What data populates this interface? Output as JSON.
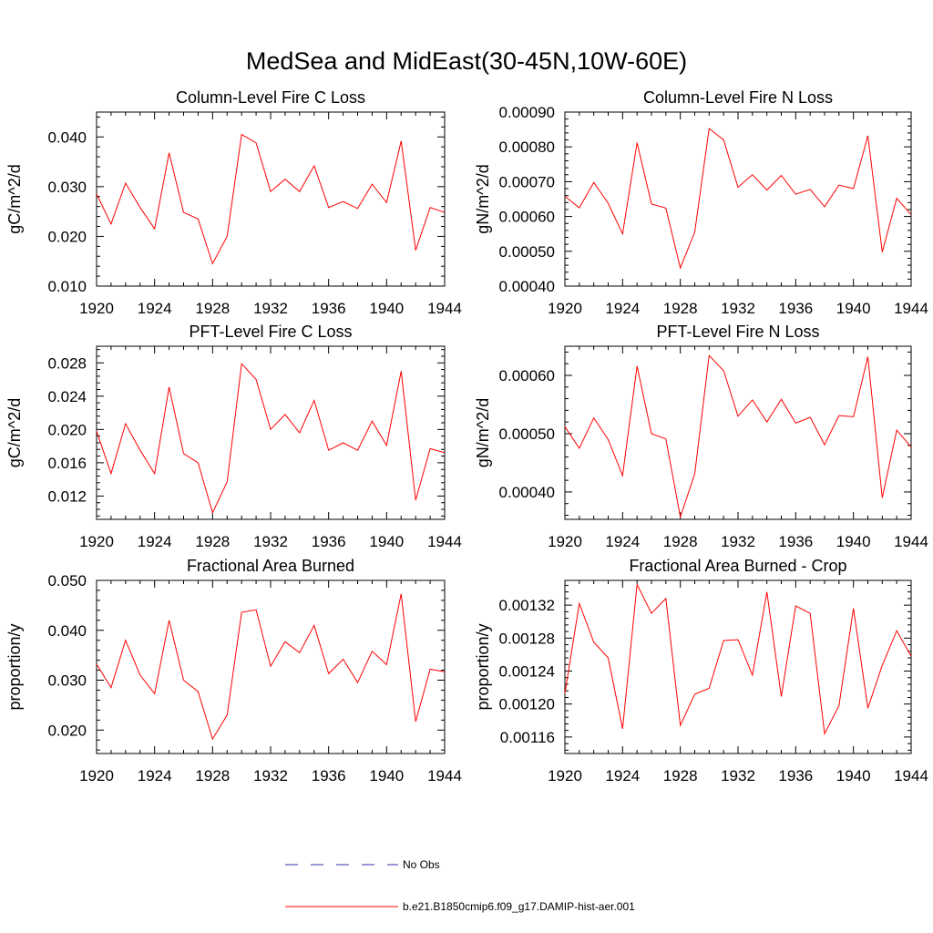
{
  "figure_title": "MedSea and MidEast(30-45N,10W-60E)",
  "legend": {
    "entries": [
      {
        "label": "No Obs",
        "color": "#3333aa",
        "dash": true
      },
      {
        "label": "b.e21.B1850cmip6.f09_g17.DAMIP-hist-aer.001",
        "color": "#ff0000",
        "dash": false
      }
    ]
  },
  "chart_data": [
    {
      "type": "line",
      "title": "Column-Level Fire C Loss",
      "ylabel": "gC/m^2/d",
      "xlim": [
        1920,
        1944
      ],
      "ylim": [
        0.01,
        0.045
      ],
      "yticks": [
        0.01,
        0.02,
        0.03,
        0.04
      ],
      "ytick_labels": [
        "0.010",
        "0.020",
        "0.030",
        "0.040"
      ],
      "xticks": [
        1920,
        1924,
        1928,
        1932,
        1936,
        1940,
        1944
      ],
      "xtick_labels": [
        "1920",
        "1924",
        "1928",
        "1932",
        "1936",
        "1940",
        "1944"
      ],
      "x": [
        1920,
        1921,
        1922,
        1923,
        1924,
        1925,
        1926,
        1927,
        1928,
        1929,
        1930,
        1931,
        1932,
        1933,
        1934,
        1935,
        1936,
        1937,
        1938,
        1939,
        1940,
        1941,
        1942,
        1943,
        1944
      ],
      "series": [
        {
          "color": "#ff0000",
          "values": [
            0.0285,
            0.0225,
            0.0307,
            0.0258,
            0.0215,
            0.0368,
            0.0248,
            0.0235,
            0.0145,
            0.02,
            0.0405,
            0.0388,
            0.029,
            0.0315,
            0.029,
            0.0342,
            0.0258,
            0.027,
            0.0256,
            0.0305,
            0.0268,
            0.0392,
            0.0172,
            0.0258,
            0.0248
          ]
        }
      ]
    },
    {
      "type": "line",
      "title": "Column-Level Fire N Loss",
      "ylabel": "gN/m^2/d",
      "xlim": [
        1920,
        1944
      ],
      "ylim": [
        0.0004,
        0.0009
      ],
      "yticks": [
        0.0004,
        0.0005,
        0.0006,
        0.0007,
        0.0008,
        0.0009
      ],
      "ytick_labels": [
        "0.00040",
        "0.00050",
        "0.00060",
        "0.00070",
        "0.00080",
        "0.00090"
      ],
      "xticks": [
        1920,
        1924,
        1928,
        1932,
        1936,
        1940,
        1944
      ],
      "xtick_labels": [
        "1920",
        "1924",
        "1928",
        "1932",
        "1936",
        "1940",
        "1944"
      ],
      "x": [
        1920,
        1921,
        1922,
        1923,
        1924,
        1925,
        1926,
        1927,
        1928,
        1929,
        1930,
        1931,
        1932,
        1933,
        1934,
        1935,
        1936,
        1937,
        1938,
        1939,
        1940,
        1941,
        1942,
        1943,
        1944
      ],
      "series": [
        {
          "color": "#ff0000",
          "values": [
            0.000658,
            0.000625,
            0.000698,
            0.000638,
            0.00055,
            0.000812,
            0.000636,
            0.000624,
            0.000452,
            0.000555,
            0.000853,
            0.00082,
            0.000684,
            0.00072,
            0.000676,
            0.000718,
            0.000664,
            0.000678,
            0.000628,
            0.00069,
            0.00068,
            0.000832,
            0.000498,
            0.000652,
            0.000605
          ]
        }
      ]
    },
    {
      "type": "line",
      "title": "PFT-Level Fire C Loss",
      "ylabel": "gC/m^2/d",
      "xlim": [
        1920,
        1944
      ],
      "ylim": [
        0.0092,
        0.03
      ],
      "yticks": [
        0.012,
        0.016,
        0.02,
        0.024,
        0.028
      ],
      "ytick_labels": [
        "0.012",
        "0.016",
        "0.020",
        "0.024",
        "0.028"
      ],
      "xticks": [
        1920,
        1924,
        1928,
        1932,
        1936,
        1940,
        1944
      ],
      "xtick_labels": [
        "1920",
        "1924",
        "1928",
        "1932",
        "1936",
        "1940",
        "1944"
      ],
      "x": [
        1920,
        1921,
        1922,
        1923,
        1924,
        1925,
        1926,
        1927,
        1928,
        1929,
        1930,
        1931,
        1932,
        1933,
        1934,
        1935,
        1936,
        1937,
        1938,
        1939,
        1940,
        1941,
        1942,
        1943,
        1944
      ],
      "series": [
        {
          "color": "#ff0000",
          "values": [
            0.0198,
            0.0147,
            0.0207,
            0.0175,
            0.0147,
            0.0251,
            0.0171,
            0.016,
            0.01,
            0.0137,
            0.0279,
            0.026,
            0.02,
            0.0218,
            0.0196,
            0.0235,
            0.0175,
            0.0184,
            0.0175,
            0.021,
            0.0181,
            0.027,
            0.0115,
            0.0177,
            0.0172
          ]
        }
      ]
    },
    {
      "type": "line",
      "title": "PFT-Level Fire N Loss",
      "ylabel": "gN/m^2/d",
      "xlim": [
        1920,
        1944
      ],
      "ylim": [
        0.000353,
        0.00065
      ],
      "yticks": [
        0.0004,
        0.0005,
        0.0006
      ],
      "ytick_labels": [
        "0.00040",
        "0.00050",
        "0.00060"
      ],
      "xticks": [
        1920,
        1924,
        1928,
        1932,
        1936,
        1940,
        1944
      ],
      "xtick_labels": [
        "1920",
        "1924",
        "1928",
        "1932",
        "1936",
        "1940",
        "1944"
      ],
      "x": [
        1920,
        1921,
        1922,
        1923,
        1924,
        1925,
        1926,
        1927,
        1928,
        1929,
        1930,
        1931,
        1932,
        1933,
        1934,
        1935,
        1936,
        1937,
        1938,
        1939,
        1940,
        1941,
        1942,
        1943,
        1944
      ],
      "series": [
        {
          "color": "#ff0000",
          "values": [
            0.000512,
            0.000475,
            0.000527,
            0.00049,
            0.000428,
            0.000616,
            0.0005,
            0.000491,
            0.000357,
            0.000431,
            0.000634,
            0.000608,
            0.00053,
            0.000558,
            0.00052,
            0.000559,
            0.000518,
            0.000528,
            0.000481,
            0.000531,
            0.000529,
            0.000632,
            0.00039,
            0.000506,
            0.000477
          ]
        }
      ]
    },
    {
      "type": "line",
      "title": "Fractional Area Burned",
      "ylabel": "proportion/y",
      "xlim": [
        1920,
        1944
      ],
      "ylim": [
        0.0153,
        0.05
      ],
      "yticks": [
        0.02,
        0.03,
        0.04,
        0.05
      ],
      "ytick_labels": [
        "0.020",
        "0.030",
        "0.040",
        "0.050"
      ],
      "xticks": [
        1920,
        1924,
        1928,
        1932,
        1936,
        1940,
        1944
      ],
      "xtick_labels": [
        "1920",
        "1924",
        "1928",
        "1932",
        "1936",
        "1940",
        "1944"
      ],
      "x": [
        1920,
        1921,
        1922,
        1923,
        1924,
        1925,
        1926,
        1927,
        1928,
        1929,
        1930,
        1931,
        1932,
        1933,
        1934,
        1935,
        1936,
        1937,
        1938,
        1939,
        1940,
        1941,
        1942,
        1943,
        1944
      ],
      "series": [
        {
          "color": "#ff0000",
          "values": [
            0.0332,
            0.0285,
            0.038,
            0.031,
            0.0273,
            0.042,
            0.03,
            0.0277,
            0.0182,
            0.023,
            0.0436,
            0.0441,
            0.0328,
            0.0377,
            0.0355,
            0.041,
            0.0313,
            0.0342,
            0.0295,
            0.0358,
            0.0331,
            0.0473,
            0.0217,
            0.0322,
            0.0317
          ]
        }
      ]
    },
    {
      "type": "line",
      "title": "Fractional Area Burned - Crop",
      "ylabel": "proportion/y",
      "xlim": [
        1920,
        1944
      ],
      "ylim": [
        0.00114,
        0.00135
      ],
      "yticks": [
        0.00116,
        0.0012,
        0.00124,
        0.00128,
        0.00132
      ],
      "ytick_labels": [
        "0.00116",
        "0.00120",
        "0.00124",
        "0.00128",
        "0.00132"
      ],
      "xticks": [
        1920,
        1924,
        1928,
        1932,
        1936,
        1940,
        1944
      ],
      "xtick_labels": [
        "1920",
        "1924",
        "1928",
        "1932",
        "1936",
        "1940",
        "1944"
      ],
      "x": [
        1920,
        1921,
        1922,
        1923,
        1924,
        1925,
        1926,
        1927,
        1928,
        1929,
        1930,
        1931,
        1932,
        1933,
        1934,
        1935,
        1936,
        1937,
        1938,
        1939,
        1940,
        1941,
        1942,
        1943,
        1944
      ],
      "series": [
        {
          "color": "#ff0000",
          "values": [
            0.001213,
            0.001322,
            0.001275,
            0.001256,
            0.00117,
            0.001345,
            0.00131,
            0.001328,
            0.001174,
            0.001212,
            0.001219,
            0.001277,
            0.001278,
            0.001235,
            0.001336,
            0.001209,
            0.001319,
            0.00131,
            0.001164,
            0.001198,
            0.001316,
            0.001195,
            0.001247,
            0.001289,
            0.001258
          ]
        }
      ]
    }
  ]
}
